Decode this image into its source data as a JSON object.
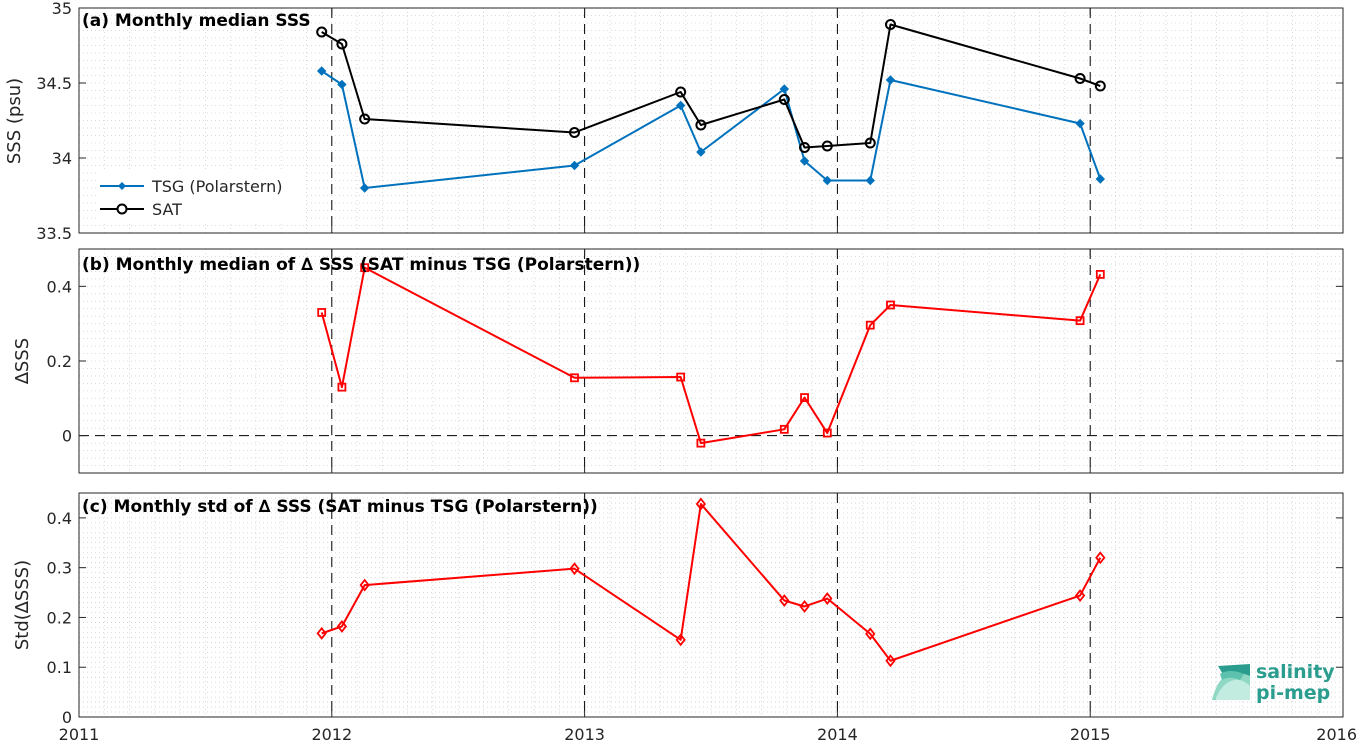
{
  "chart_data": [
    {
      "type": "line",
      "title": "(a) Monthly median SSS",
      "xlabel": "",
      "ylabel": "SSS (psu)",
      "xlim": [
        2011,
        2016
      ],
      "ylim": [
        33.5,
        35
      ],
      "yticks": [
        "33.5",
        "34",
        "34.5",
        "35"
      ],
      "grid": "minor dotted",
      "legend_position": "lower-left",
      "series": [
        {
          "name": "TSG (Polarstern)",
          "color": "#0072bd",
          "marker": "filled-diamond",
          "x": [
            2011.96,
            2012.04,
            2012.13,
            2012.96,
            2013.38,
            2013.46,
            2013.79,
            2013.87,
            2013.96,
            2014.13,
            2014.21,
            2014.96,
            2015.04
          ],
          "y": [
            34.58,
            34.49,
            33.8,
            33.95,
            34.35,
            34.04,
            34.46,
            33.98,
            33.85,
            33.85,
            34.52,
            34.23,
            33.86
          ]
        },
        {
          "name": "SAT",
          "color": "#000000",
          "marker": "open-circle",
          "x": [
            2011.96,
            2012.04,
            2012.13,
            2012.96,
            2013.38,
            2013.46,
            2013.79,
            2013.87,
            2013.96,
            2014.13,
            2014.21,
            2014.96,
            2015.04
          ],
          "y": [
            34.84,
            34.76,
            34.26,
            34.17,
            34.44,
            34.22,
            34.39,
            34.07,
            34.08,
            34.1,
            34.89,
            34.53,
            34.48
          ]
        }
      ]
    },
    {
      "type": "line",
      "title": "(b) Monthly median of ∆ SSS (SAT minus TSG (Polarstern))",
      "xlabel": "",
      "ylabel": "∆SSS",
      "xlim": [
        2011,
        2016
      ],
      "ylim": [
        -0.1,
        0.5
      ],
      "yticks": [
        "0",
        "0.2",
        "0.4"
      ],
      "reference_line": 0,
      "series": [
        {
          "color": "#ff0000",
          "marker": "open-square",
          "x": [
            2011.96,
            2012.04,
            2012.13,
            2012.96,
            2013.38,
            2013.46,
            2013.79,
            2013.87,
            2013.96,
            2014.13,
            2014.21,
            2014.96,
            2015.04
          ],
          "y": [
            0.33,
            0.13,
            0.45,
            0.155,
            0.157,
            -0.02,
            0.017,
            0.102,
            0.007,
            0.296,
            0.35,
            0.308,
            0.432
          ]
        }
      ]
    },
    {
      "type": "line",
      "title": "(c) Monthly std of ∆ SSS (SAT minus TSG (Polarstern))",
      "xlabel": "",
      "ylabel": "Std(∆SSS)",
      "xlim": [
        2011,
        2016
      ],
      "ylim": [
        0,
        0.45
      ],
      "yticks": [
        "0",
        "0.1",
        "0.2",
        "0.3",
        "0.4"
      ],
      "xticks": [
        "2011",
        "2012",
        "2013",
        "2014",
        "2015",
        "2016"
      ],
      "series": [
        {
          "color": "#ff0000",
          "marker": "open-diamond",
          "x": [
            2011.96,
            2012.04,
            2012.13,
            2012.96,
            2013.38,
            2013.46,
            2013.79,
            2013.87,
            2013.96,
            2014.13,
            2014.21,
            2014.96,
            2015.04
          ],
          "y": [
            0.168,
            0.182,
            0.265,
            0.298,
            0.155,
            0.428,
            0.234,
            0.222,
            0.238,
            0.167,
            0.113,
            0.244,
            0.32
          ]
        }
      ]
    }
  ],
  "logo": {
    "line1": "salinity",
    "line2": "pi-mep",
    "color": "#2a9d8f"
  }
}
